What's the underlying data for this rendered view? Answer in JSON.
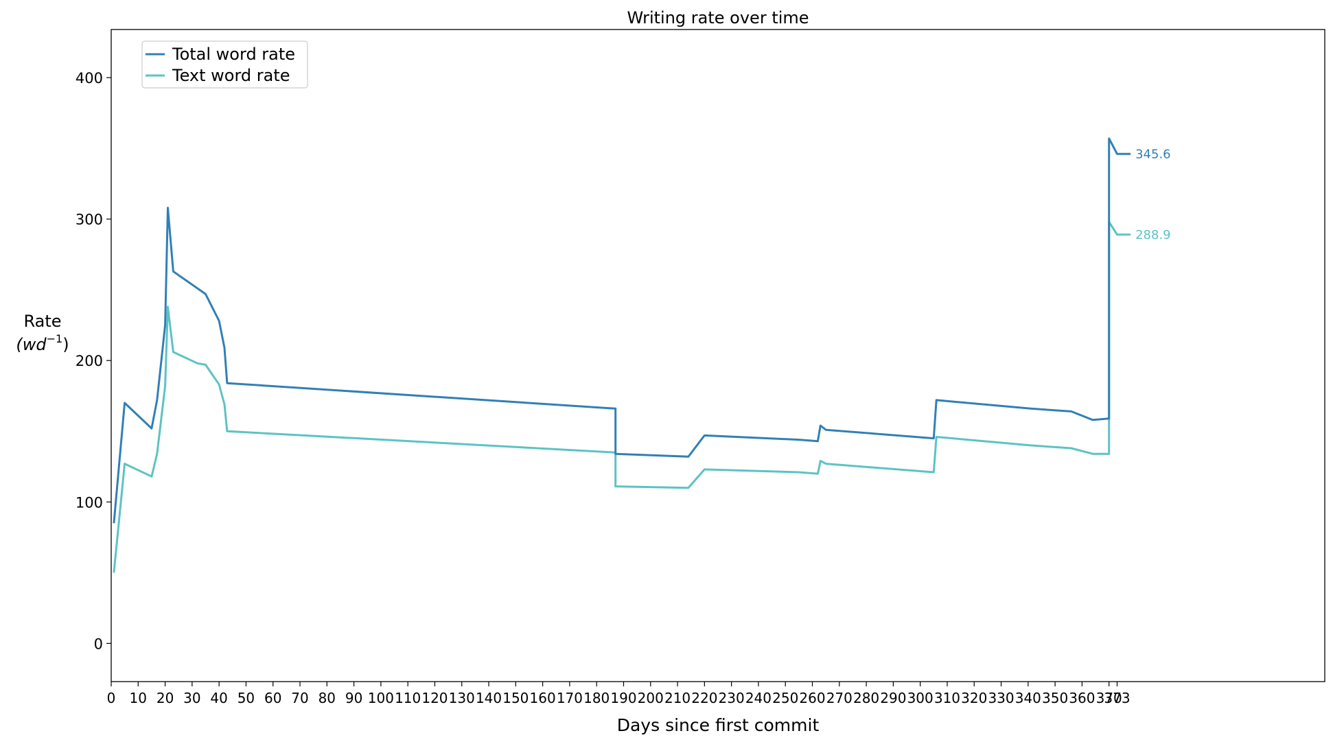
{
  "chart_data": {
    "type": "line",
    "title": "Writing rate over time",
    "xlabel": "Days since first commit",
    "ylabel_line1": "Rate",
    "ylabel_line2": "(wd",
    "ylabel_exp": "−1",
    "ylabel_close": ")",
    "xlim": [
      0,
      450
    ],
    "ylim": [
      -27,
      434
    ],
    "x_ticks": [
      0,
      10,
      20,
      30,
      40,
      50,
      60,
      70,
      80,
      90,
      100,
      110,
      120,
      130,
      140,
      150,
      160,
      170,
      180,
      190,
      200,
      210,
      220,
      230,
      240,
      250,
      260,
      270,
      280,
      290,
      300,
      310,
      320,
      330,
      340,
      350,
      360,
      370,
      373
    ],
    "y_ticks": [
      0,
      100,
      200,
      300,
      400
    ],
    "grid": false,
    "legend_position": "top-left",
    "series": [
      {
        "name": "Total word rate",
        "color": "#3080b5",
        "end_label": "345.6",
        "x": [
          1,
          5,
          15,
          17,
          20,
          21,
          23,
          35,
          40,
          42,
          43,
          187,
          187,
          187,
          214,
          220,
          255,
          262,
          263,
          265,
          305,
          306,
          341,
          356,
          364,
          370,
          370,
          370,
          373,
          378
        ],
        "y": [
          85,
          170,
          152,
          172,
          225,
          308,
          263,
          247,
          228,
          209,
          184,
          166,
          140,
          134,
          132,
          147,
          144,
          143,
          154,
          151,
          145,
          172,
          166,
          164,
          158,
          159,
          300,
          357,
          346,
          346
        ]
      },
      {
        "name": "Text word rate",
        "color": "#5cc3c2",
        "end_label": "288.9",
        "x": [
          1,
          5,
          15,
          17,
          20,
          21,
          23,
          32,
          35,
          40,
          42,
          43,
          187,
          187,
          187,
          214,
          220,
          255,
          262,
          263,
          265,
          305,
          306,
          341,
          356,
          364,
          370,
          370,
          370,
          373,
          378
        ],
        "y": [
          50,
          127,
          118,
          134,
          182,
          238,
          206,
          198,
          197,
          183,
          169,
          150,
          135,
          120,
          111,
          110,
          123,
          121,
          120,
          129,
          127,
          121,
          146,
          140,
          138,
          134,
          134,
          250,
          298,
          289,
          289
        ]
      }
    ]
  }
}
